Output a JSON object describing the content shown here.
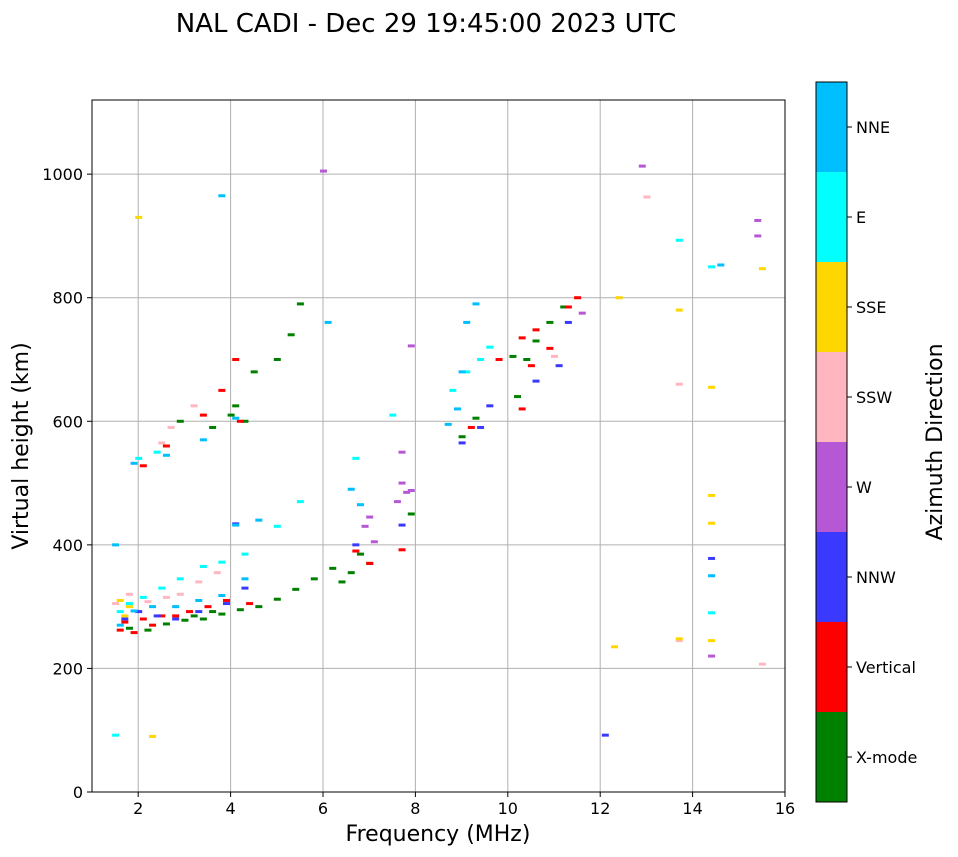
{
  "chart_data": {
    "type": "scatter",
    "title": "NAL CADI - Dec 29 19:45:00 2023 UTC",
    "xlabel": "Frequency (MHz)",
    "ylabel": "Virtual height (km)",
    "xlim": [
      1,
      16
    ],
    "ylim": [
      0,
      1120
    ],
    "xticks": [
      2,
      4,
      6,
      8,
      10,
      12,
      14,
      16
    ],
    "yticks": [
      0,
      200,
      400,
      600,
      800,
      1000
    ],
    "grid": true,
    "colorbar": {
      "title": "Azimuth Direction",
      "categories": [
        {
          "name": "X-mode",
          "color": "#008000"
        },
        {
          "name": "Vertical",
          "color": "#ff0000"
        },
        {
          "name": "NNW",
          "color": "#3a3aff"
        },
        {
          "name": "W",
          "color": "#b658d6"
        },
        {
          "name": "SSW",
          "color": "#ffb6c1"
        },
        {
          "name": "SSE",
          "color": "#ffd700"
        },
        {
          "name": "E",
          "color": "#00ffff"
        },
        {
          "name": "NNE",
          "color": "#00bfff"
        }
      ]
    },
    "series": [
      {
        "name": "X-mode",
        "points": [
          [
            1.8,
            265
          ],
          [
            2.2,
            262
          ],
          [
            2.6,
            272
          ],
          [
            3.0,
            278
          ],
          [
            3.4,
            280
          ],
          [
            3.8,
            288
          ],
          [
            4.2,
            295
          ],
          [
            4.6,
            300
          ],
          [
            5.0,
            312
          ],
          [
            5.4,
            328
          ],
          [
            5.8,
            345
          ],
          [
            6.2,
            362
          ],
          [
            6.6,
            355
          ],
          [
            7.0,
            370
          ],
          [
            6.4,
            340
          ],
          [
            6.8,
            385
          ],
          [
            3.2,
            285
          ],
          [
            3.6,
            292
          ],
          [
            2.9,
            600
          ],
          [
            3.6,
            590
          ],
          [
            4.1,
            625
          ],
          [
            4.5,
            680
          ],
          [
            5.0,
            700
          ],
          [
            5.3,
            740
          ],
          [
            5.5,
            790
          ],
          [
            4.0,
            610
          ],
          [
            4.3,
            600
          ],
          [
            10.1,
            705
          ],
          [
            10.4,
            700
          ],
          [
            10.6,
            730
          ],
          [
            10.9,
            760
          ],
          [
            11.2,
            785
          ],
          [
            10.2,
            640
          ],
          [
            9.0,
            575
          ],
          [
            9.3,
            605
          ],
          [
            7.9,
            450
          ]
        ]
      },
      {
        "name": "Vertical",
        "points": [
          [
            1.6,
            262
          ],
          [
            1.7,
            275
          ],
          [
            1.9,
            258
          ],
          [
            2.1,
            280
          ],
          [
            2.3,
            270
          ],
          [
            2.5,
            285
          ],
          [
            2.8,
            285
          ],
          [
            3.1,
            292
          ],
          [
            3.5,
            300
          ],
          [
            3.9,
            310
          ],
          [
            4.4,
            305
          ],
          [
            2.1,
            528
          ],
          [
            2.6,
            560
          ],
          [
            3.4,
            610
          ],
          [
            3.8,
            650
          ],
          [
            4.1,
            700
          ],
          [
            4.2,
            600
          ],
          [
            9.2,
            590
          ],
          [
            9.8,
            700
          ],
          [
            10.3,
            735
          ],
          [
            10.6,
            748
          ],
          [
            10.9,
            718
          ],
          [
            11.3,
            785
          ],
          [
            11.5,
            800
          ],
          [
            10.5,
            690
          ],
          [
            10.3,
            620
          ],
          [
            7.7,
            392
          ],
          [
            7.0,
            370
          ],
          [
            6.7,
            390
          ]
        ]
      },
      {
        "name": "NNW",
        "points": [
          [
            1.7,
            280
          ],
          [
            2.0,
            292
          ],
          [
            2.4,
            285
          ],
          [
            2.8,
            280
          ],
          [
            3.3,
            292
          ],
          [
            3.9,
            305
          ],
          [
            4.3,
            330
          ],
          [
            4.1,
            434
          ],
          [
            6.7,
            400
          ],
          [
            7.7,
            432
          ],
          [
            9.0,
            565
          ],
          [
            9.4,
            590
          ],
          [
            9.6,
            625
          ],
          [
            10.6,
            665
          ],
          [
            11.1,
            690
          ],
          [
            11.3,
            760
          ],
          [
            12.1,
            92
          ],
          [
            14.4,
            378
          ]
        ]
      },
      {
        "name": "W",
        "points": [
          [
            7.6,
            470
          ],
          [
            7.7,
            500
          ],
          [
            7.8,
            485
          ],
          [
            7.9,
            488
          ],
          [
            7.7,
            550
          ],
          [
            6.9,
            430
          ],
          [
            7.1,
            405
          ],
          [
            7.0,
            445
          ],
          [
            6.0,
            1005
          ],
          [
            7.9,
            722
          ],
          [
            12.9,
            1013
          ],
          [
            14.4,
            220
          ],
          [
            15.4,
            925
          ],
          [
            15.4,
            900
          ],
          [
            11.6,
            775
          ]
        ]
      },
      {
        "name": "SSW",
        "points": [
          [
            1.5,
            305
          ],
          [
            1.8,
            320
          ],
          [
            2.2,
            308
          ],
          [
            2.6,
            315
          ],
          [
            2.9,
            320
          ],
          [
            3.3,
            340
          ],
          [
            3.7,
            355
          ],
          [
            2.5,
            565
          ],
          [
            2.7,
            590
          ],
          [
            3.2,
            625
          ],
          [
            13.0,
            963
          ],
          [
            13.7,
            660
          ],
          [
            13.7,
            245
          ],
          [
            15.5,
            207
          ],
          [
            11.0,
            705
          ]
        ]
      },
      {
        "name": "SSE",
        "points": [
          [
            1.6,
            310
          ],
          [
            1.7,
            285
          ],
          [
            1.8,
            300
          ],
          [
            2.3,
            90
          ],
          [
            2.0,
            930
          ],
          [
            12.3,
            235
          ],
          [
            12.4,
            800
          ],
          [
            13.7,
            780
          ],
          [
            14.4,
            655
          ],
          [
            14.4,
            480
          ],
          [
            14.4,
            435
          ],
          [
            14.4,
            245
          ],
          [
            15.5,
            847
          ],
          [
            13.7,
            248
          ]
        ]
      },
      {
        "name": "E",
        "points": [
          [
            1.6,
            292
          ],
          [
            1.8,
            305
          ],
          [
            2.1,
            315
          ],
          [
            2.5,
            330
          ],
          [
            2.9,
            345
          ],
          [
            3.4,
            365
          ],
          [
            3.8,
            372
          ],
          [
            4.3,
            385
          ],
          [
            5.0,
            430
          ],
          [
            5.5,
            470
          ],
          [
            1.5,
            92
          ],
          [
            2.0,
            540
          ],
          [
            2.4,
            550
          ],
          [
            8.8,
            650
          ],
          [
            9.1,
            680
          ],
          [
            9.4,
            700
          ],
          [
            9.6,
            720
          ],
          [
            13.7,
            893
          ],
          [
            14.4,
            850
          ],
          [
            14.4,
            290
          ],
          [
            7.5,
            610
          ],
          [
            6.7,
            540
          ]
        ]
      },
      {
        "name": "NNE",
        "points": [
          [
            1.6,
            270
          ],
          [
            1.5,
            400
          ],
          [
            1.9,
            293
          ],
          [
            2.3,
            300
          ],
          [
            2.8,
            300
          ],
          [
            3.3,
            310
          ],
          [
            3.8,
            318
          ],
          [
            4.3,
            345
          ],
          [
            1.9,
            532
          ],
          [
            2.6,
            545
          ],
          [
            3.4,
            570
          ],
          [
            4.1,
            605
          ],
          [
            4.1,
            432
          ],
          [
            4.6,
            440
          ],
          [
            6.1,
            760
          ],
          [
            6.6,
            490
          ],
          [
            6.8,
            465
          ],
          [
            8.7,
            595
          ],
          [
            8.9,
            620
          ],
          [
            9.0,
            680
          ],
          [
            9.1,
            760
          ],
          [
            9.3,
            790
          ],
          [
            3.8,
            965
          ],
          [
            14.6,
            853
          ],
          [
            14.4,
            350
          ]
        ]
      }
    ]
  }
}
